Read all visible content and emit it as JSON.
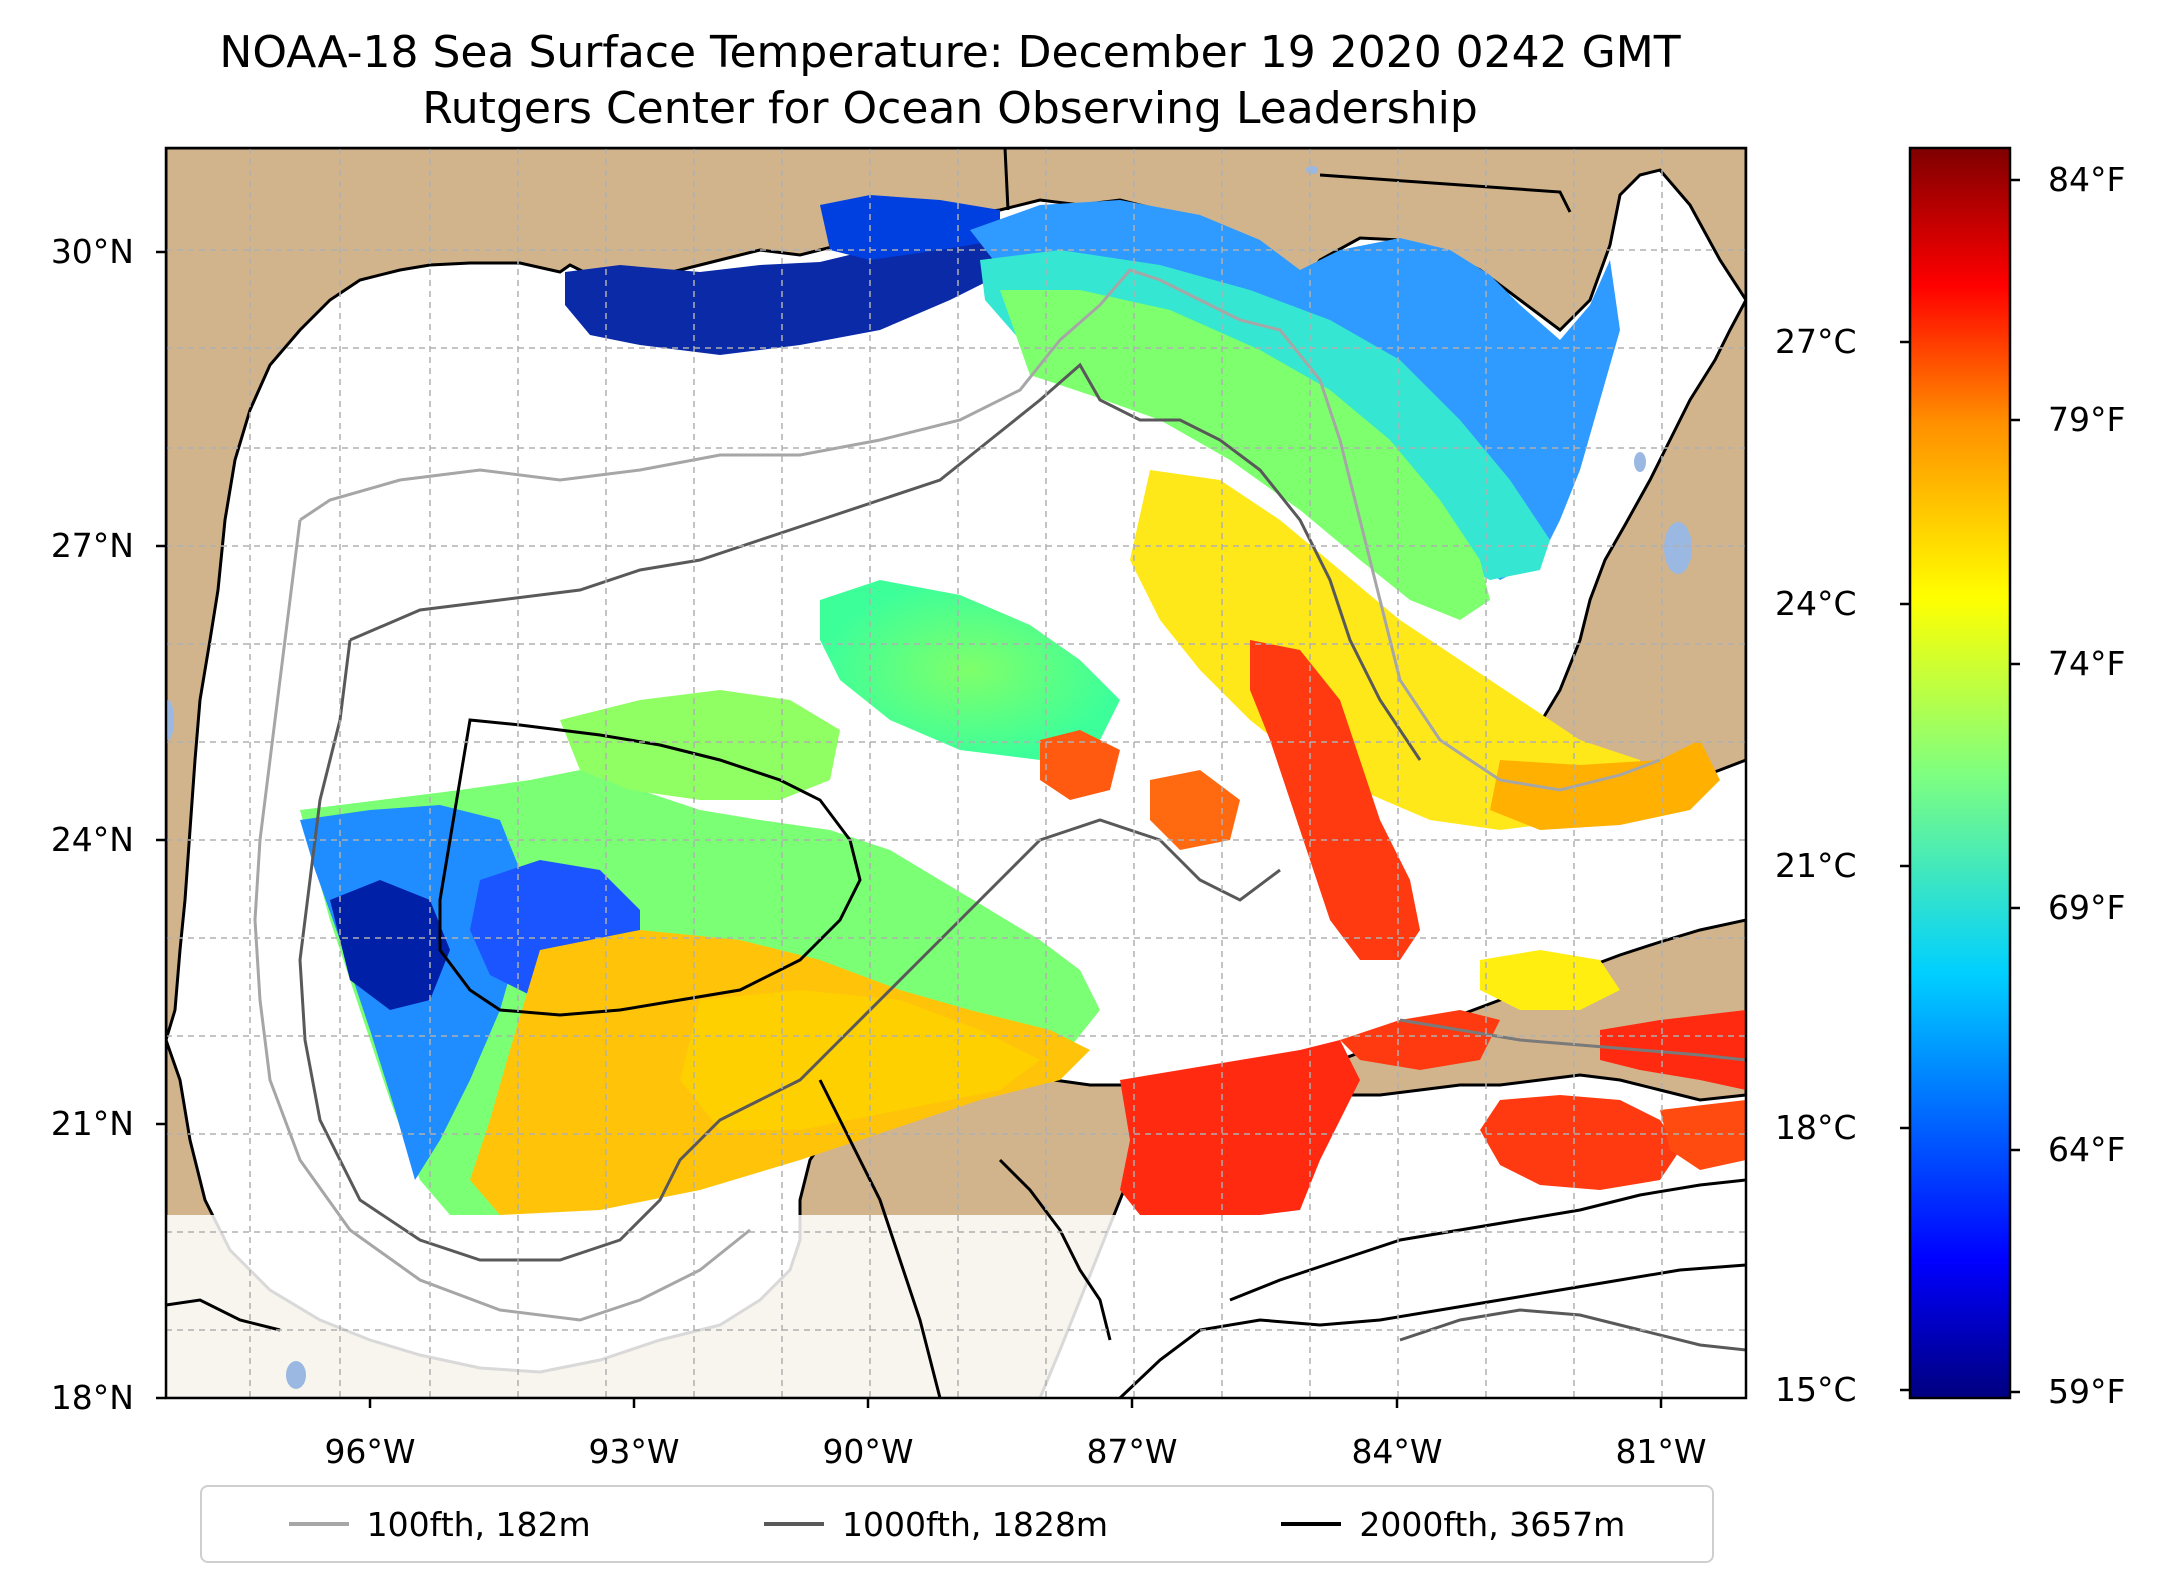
{
  "title": "NOAA-18 Sea Surface Temperature: December 19 2020 0242 GMT",
  "subtitle": "Rutgers Center for Ocean Observing Leadership",
  "axes": {
    "lat_ticks": [
      "30°N",
      "27°N",
      "24°N",
      "21°N",
      "18°N"
    ],
    "lon_ticks": [
      "96°W",
      "93°W",
      "90°W",
      "87°W",
      "84°W",
      "81°W"
    ]
  },
  "colorbar": {
    "celsius_ticks": [
      "27°C",
      "24°C",
      "21°C",
      "18°C",
      "15°C"
    ],
    "fahrenheit_ticks": [
      "84°F",
      "79°F",
      "74°F",
      "69°F",
      "64°F",
      "59°F"
    ],
    "colormap": [
      "#00007f",
      "#0000ff",
      "#007fff",
      "#00ffff",
      "#7fff7f",
      "#ffff00",
      "#ff7f00",
      "#ff0000",
      "#7f0000"
    ]
  },
  "legend": [
    {
      "label": "100fth, 182m",
      "color": "#a6a6a6"
    },
    {
      "label": "1000fth, 1828m",
      "color": "#595959"
    },
    {
      "label": "2000fth, 3657m",
      "color": "#000000"
    }
  ],
  "colors": {
    "land": "#d2b48c",
    "no_data": "#ffffff",
    "inland_water": "#9ab8e2",
    "grid": "#b0b0b0"
  }
}
